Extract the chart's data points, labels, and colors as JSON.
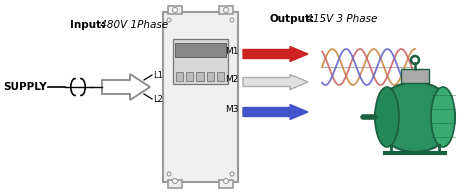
{
  "bg_color": "#ffffff",
  "title_input": "Input:",
  "title_input_val": " 480V 1Phase",
  "title_output": "Output:",
  "title_output_val": " 415V 3 Phase",
  "supply_label": "SUPPLY",
  "l1_label": "L1",
  "l2_label": "L2",
  "m1_label": "M1",
  "m2_label": "M2",
  "m3_label": "M3",
  "arrow_m1_color": "#cc2222",
  "arrow_m2_color": "#e0e0e0",
  "arrow_m2_edge": "#aaaaaa",
  "arrow_m3_color": "#4455cc",
  "sine_color1": "#cc6666",
  "sine_color2": "#6666cc",
  "sine_color3": "#cc8844",
  "vfd_box_fc": "#f0f0f0",
  "vfd_box_ec": "#999999",
  "motor_green": "#2a9060",
  "motor_dark": "#1a6040"
}
